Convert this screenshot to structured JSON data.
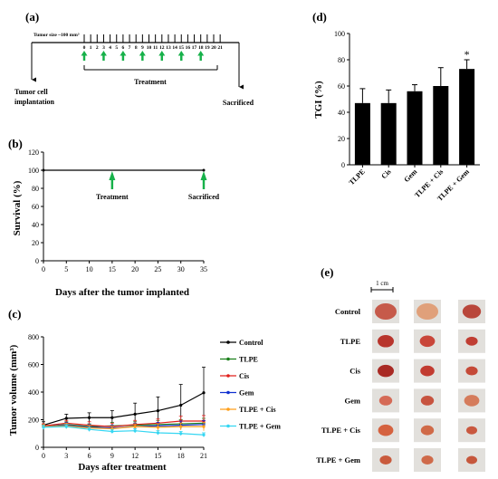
{
  "colors": {
    "arrow_green": "#17b14a",
    "bar_fill": "#000000",
    "series": [
      "#000000",
      "#1a7f1a",
      "#e0201c",
      "#1030d0",
      "#ff9f1a",
      "#35d6f2"
    ]
  },
  "panel_a": {
    "label": "(a)",
    "tumor_size_note": "Tumor size ~100 mm³",
    "ticks": [
      "0",
      "1",
      "2",
      "3",
      "4",
      "5",
      "6",
      "7",
      "8",
      "9",
      "10",
      "11",
      "12",
      "13",
      "14",
      "15",
      "16",
      "17",
      "18",
      "19",
      "20",
      "21"
    ],
    "treatment_days": [
      0,
      3,
      6,
      9,
      12,
      15,
      18
    ],
    "treatment_label": "Treatment",
    "left_event_line1": "Tumor cell",
    "left_event_line2": "implantation",
    "right_event": "Sacrificed"
  },
  "panel_b": {
    "label": "(b)",
    "ylabel": "Survival (%)",
    "xlabel": "Days after the tumor implanted",
    "arrow_labels": [
      "Treatment",
      "Sacrificed"
    ],
    "arrow_days": [
      15,
      35
    ]
  },
  "panel_c": {
    "label": "(c)",
    "ylabel": "Tumor volume (mm³)",
    "xlabel": "Days after treatment"
  },
  "panel_d": {
    "label": "(d)",
    "ylabel": "TGI (%)",
    "significance": "*"
  },
  "panel_e": {
    "label": "(e)",
    "scale_bar": "1 cm",
    "rows": [
      "Control",
      "TLPE",
      "Cis",
      "Gem",
      "TLPE + Cis",
      "TLPE + Gem"
    ]
  },
  "chart_data": [
    {
      "panel": "b",
      "type": "line",
      "x": [
        0,
        35
      ],
      "series": [
        {
          "values": [
            100,
            100
          ]
        }
      ],
      "xlabel": "Days after the tumor implanted",
      "ylabel": "Survival (%)",
      "xlim": [
        0,
        35
      ],
      "ylim": [
        0,
        120
      ],
      "xticks": [
        0,
        5,
        10,
        15,
        20,
        25,
        30,
        35
      ],
      "yticks": [
        0,
        20,
        40,
        60,
        80,
        100,
        120
      ],
      "annotations": [
        {
          "text": "Treatment",
          "x": 15
        },
        {
          "text": "Sacrificed",
          "x": 35
        }
      ]
    },
    {
      "panel": "c",
      "type": "line",
      "x": [
        0,
        3,
        6,
        9,
        12,
        15,
        18,
        21
      ],
      "xticks": [
        0,
        3,
        6,
        9,
        12,
        15,
        18,
        21
      ],
      "yticks": [
        0,
        200,
        400,
        600,
        800
      ],
      "xlim": [
        0,
        21
      ],
      "ylim": [
        0,
        800
      ],
      "xlabel": "Days after treatment",
      "ylabel": "Tumor volume (mm³)",
      "legend_position": "right",
      "series": [
        {
          "name": "Control",
          "values": [
            160,
            210,
            215,
            215,
            240,
            265,
            305,
            395
          ],
          "errors": [
            25,
            30,
            35,
            50,
            80,
            100,
            150,
            185
          ]
        },
        {
          "name": "TLPE",
          "values": [
            150,
            165,
            150,
            155,
            160,
            165,
            170,
            175
          ],
          "errors": [
            15,
            20,
            20,
            25,
            25,
            30,
            30,
            35
          ]
        },
        {
          "name": "Cis",
          "values": [
            155,
            175,
            160,
            150,
            165,
            175,
            190,
            190
          ],
          "errors": [
            15,
            20,
            25,
            25,
            30,
            30,
            35,
            40
          ]
        },
        {
          "name": "Gem",
          "values": [
            150,
            160,
            145,
            140,
            150,
            155,
            160,
            165
          ],
          "errors": [
            15,
            20,
            20,
            20,
            25,
            25,
            30,
            30
          ]
        },
        {
          "name": "TLPE + Cis",
          "values": [
            150,
            155,
            140,
            135,
            150,
            145,
            150,
            150
          ],
          "errors": [
            15,
            20,
            20,
            20,
            20,
            25,
            25,
            30
          ]
        },
        {
          "name": "TLPE + Gem",
          "values": [
            145,
            150,
            130,
            115,
            120,
            105,
            100,
            90
          ],
          "errors": [
            15,
            15,
            15,
            15,
            15,
            15,
            15,
            15
          ]
        }
      ]
    },
    {
      "panel": "d",
      "type": "bar",
      "categories": [
        "TLPE",
        "Cis",
        "Gem",
        "TLPE + Cis",
        "TLPE + Gem"
      ],
      "values": [
        47,
        47,
        56,
        60,
        73
      ],
      "errors": [
        11,
        10,
        5,
        14,
        7
      ],
      "ylabel": "TGI (%)",
      "ylim": [
        0,
        100
      ],
      "yticks": [
        0,
        20,
        40,
        60,
        80,
        100
      ],
      "annotations": [
        {
          "category": "TLPE + Gem",
          "text": "*"
        }
      ]
    }
  ]
}
